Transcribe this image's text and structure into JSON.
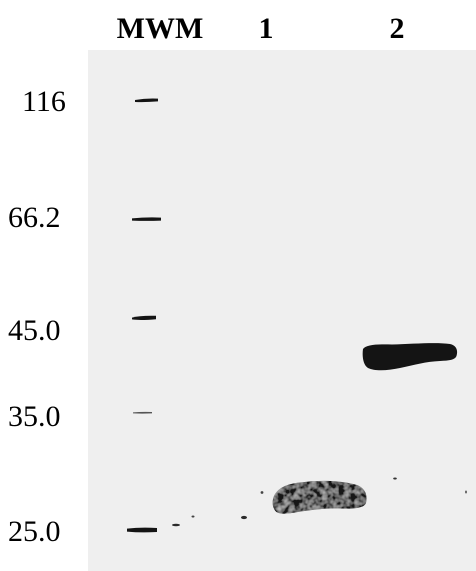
{
  "lanes": [
    {
      "label": "MWM"
    },
    {
      "label": "1"
    },
    {
      "label": "2"
    }
  ],
  "markers": [
    {
      "label": "116"
    },
    {
      "label": "66.2"
    },
    {
      "label": "45.0"
    },
    {
      "label": "35.0"
    },
    {
      "label": "25.0"
    }
  ],
  "colors": {
    "membrane": "#efefef",
    "band": "#141414",
    "text": "#000000"
  }
}
